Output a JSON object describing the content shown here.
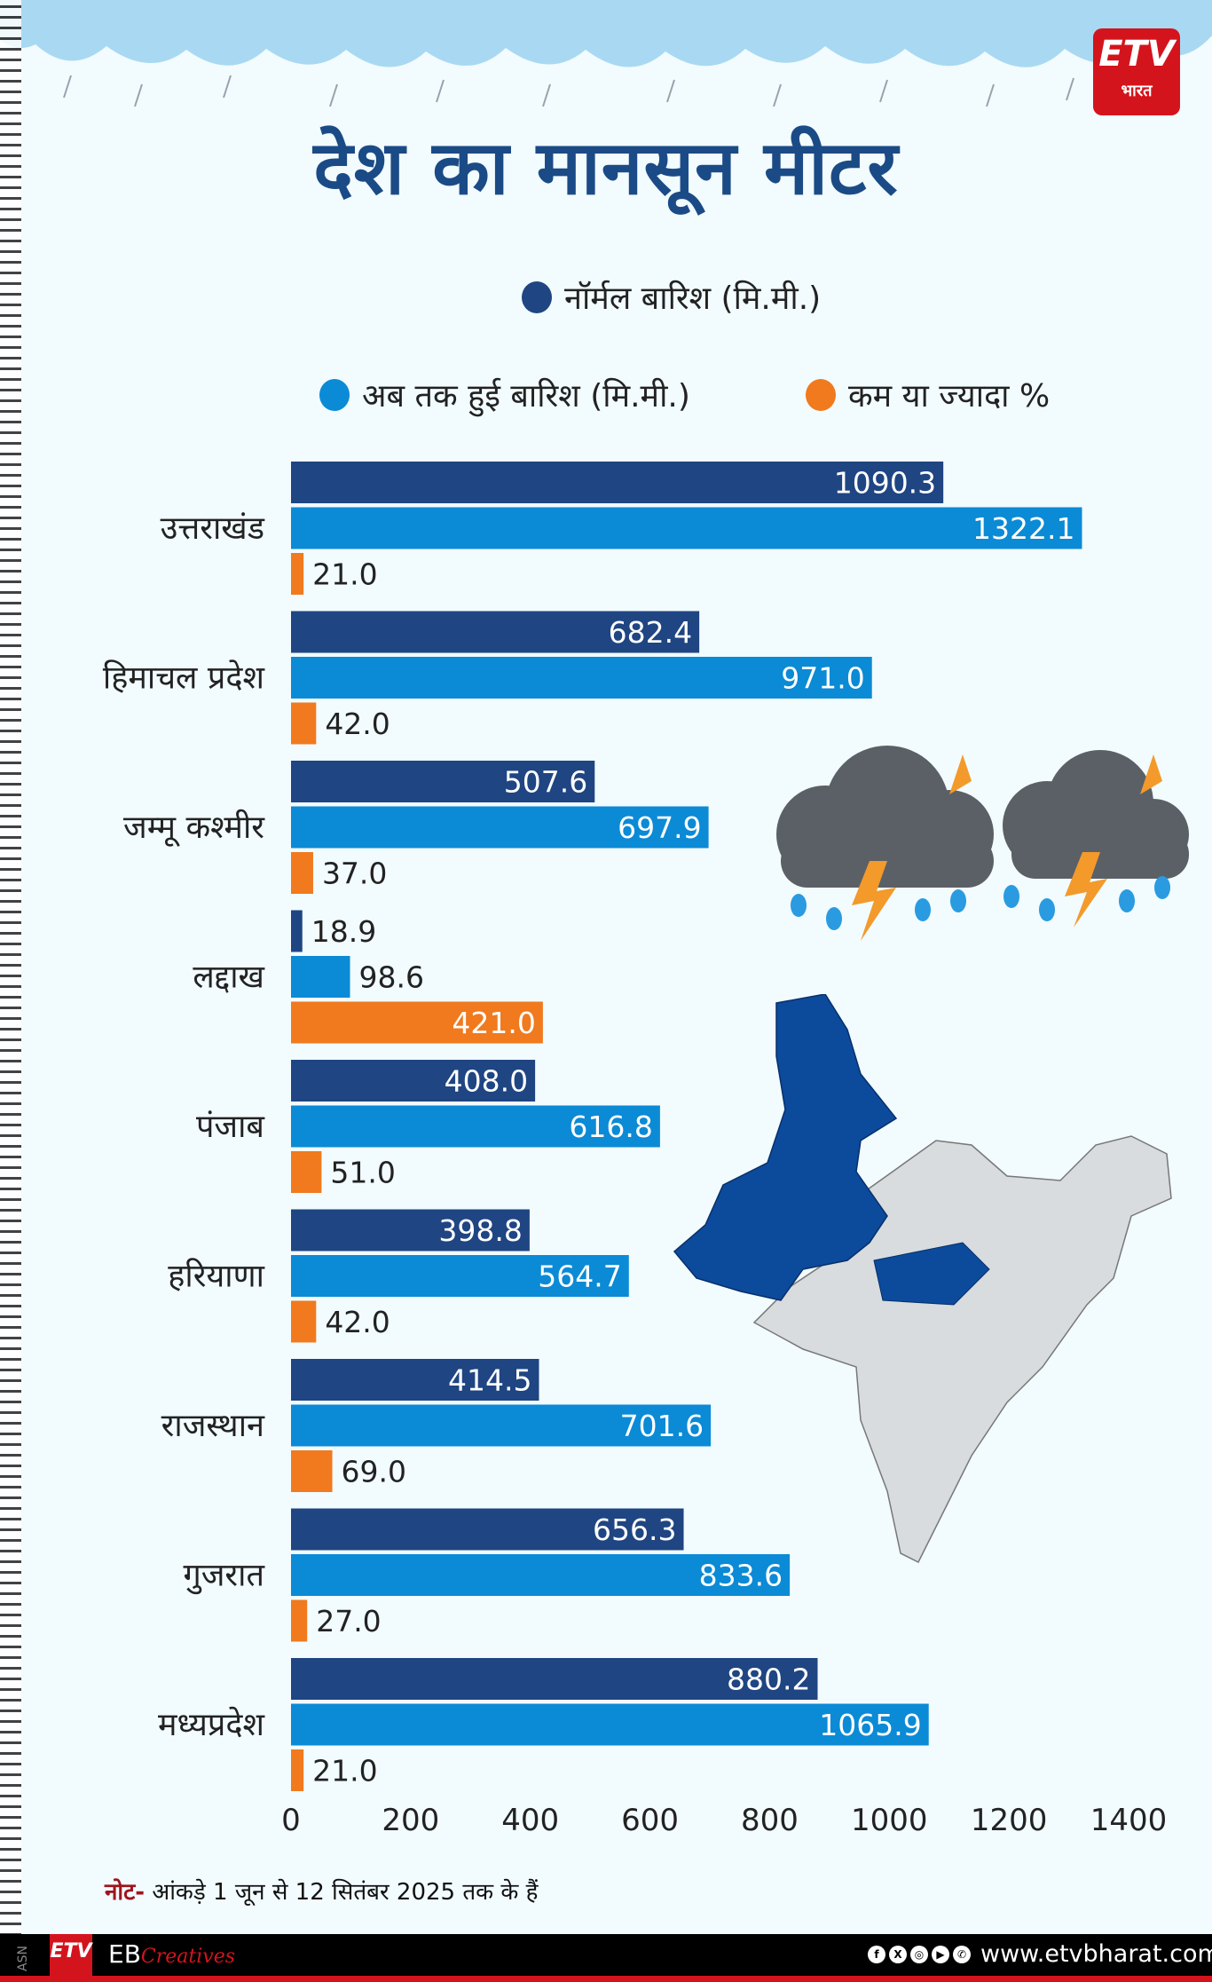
{
  "brand": {
    "logo_text": "ETV",
    "logo_sub": "भारत",
    "credit": "EB",
    "credit_script": "Creatives",
    "side_tag": "ASN",
    "url": "www.etvbharat.com",
    "social_icons": [
      "facebook-icon",
      "x-icon",
      "instagram-icon",
      "youtube-icon",
      "whatsapp-icon"
    ]
  },
  "title": "देश का मानसून मीटर",
  "note": {
    "prefix": "नोट-",
    "text": " आंकड़े 1 जून से 12 सितंबर 2025 तक के हैं"
  },
  "colors": {
    "normal": "#1f4582",
    "actual": "#0b8ad6",
    "pct": "#f07a1d",
    "title": "#1b4b86",
    "highlight_map": "#0c4a9c",
    "map_grey": "#d8dcde"
  },
  "chart_data": {
    "type": "bar",
    "orientation": "horizontal",
    "title": "देश का मानसून मीटर",
    "categories": [
      "उत्तराखंड",
      "हिमाचल प्रदेश",
      "जम्मू कश्मीर",
      "लद्दाख",
      "पंजाब",
      "हरियाणा",
      "राजस्थान",
      "गुजरात",
      "मध्यप्रदेश"
    ],
    "series": [
      {
        "name": "नॉर्मल बारिश (मि.मी.)",
        "values": [
          1090.3,
          682.4,
          507.6,
          18.9,
          408.0,
          398.8,
          414.5,
          656.3,
          880.2
        ]
      },
      {
        "name": "अब तक हुई बारिश (मि.मी.)",
        "values": [
          1322.1,
          971.0,
          697.9,
          98.6,
          616.8,
          564.7,
          701.6,
          833.6,
          1065.9
        ]
      },
      {
        "name": "कम या ज्यादा %",
        "values": [
          21.0,
          42.0,
          37.0,
          421.0,
          51.0,
          42.0,
          69.0,
          27.0,
          21.0
        ]
      }
    ],
    "xlim": [
      0,
      1400
    ],
    "xticks": [
      "0",
      "200",
      "400",
      "600",
      "800",
      "1000",
      "1200",
      "1400"
    ],
    "grid": false,
    "legend_position": "top"
  }
}
